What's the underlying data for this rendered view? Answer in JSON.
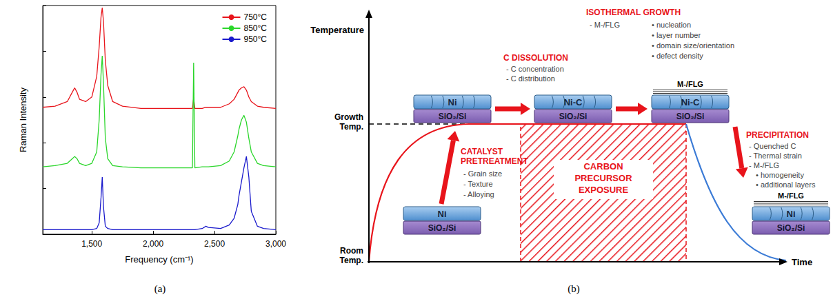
{
  "chart_data": {
    "type": "line",
    "xlabel": "Frequency (cm⁻¹)",
    "ylabel": "Raman Intensity",
    "x": [
      1100,
      1200,
      1300,
      1340,
      1360,
      1380,
      1400,
      1450,
      1500,
      1540,
      1560,
      1575,
      1585,
      1595,
      1610,
      1630,
      1670,
      1750,
      1900,
      2100,
      2300,
      2320,
      2330,
      2340,
      2400,
      2430,
      2450,
      2550,
      2620,
      2660,
      2690,
      2700,
      2720,
      2740,
      2760,
      2780,
      2800,
      2850,
      2900,
      3000
    ],
    "series": [
      {
        "name": "750°C",
        "color": "#e8141b",
        "values": [
          5.55,
          5.6,
          5.8,
          6.2,
          6.4,
          6.2,
          5.9,
          5.8,
          6.0,
          6.9,
          8.2,
          9.5,
          9.9,
          9.3,
          7.6,
          6.5,
          5.8,
          5.6,
          5.5,
          5.5,
          5.5,
          5.5,
          5.95,
          5.5,
          5.5,
          5.55,
          5.55,
          5.55,
          5.7,
          5.9,
          6.2,
          6.3,
          6.4,
          6.45,
          6.3,
          6.0,
          5.8,
          5.6,
          5.55,
          5.5
        ]
      },
      {
        "name": "850°C",
        "color": "#2bd62b",
        "values": [
          2.95,
          3.0,
          3.1,
          3.3,
          3.4,
          3.3,
          3.1,
          3.0,
          3.1,
          3.6,
          5.0,
          7.0,
          7.8,
          6.6,
          4.2,
          3.3,
          3.0,
          2.95,
          2.9,
          2.9,
          2.9,
          2.9,
          7.5,
          2.9,
          2.95,
          2.95,
          2.95,
          3.0,
          3.2,
          3.6,
          4.3,
          4.6,
          5.0,
          5.2,
          4.9,
          4.2,
          3.6,
          3.1,
          3.0,
          2.95
        ]
      },
      {
        "name": "950°C",
        "color": "#1a1acc",
        "values": [
          0.2,
          0.2,
          0.2,
          0.2,
          0.2,
          0.2,
          0.2,
          0.2,
          0.2,
          0.25,
          0.5,
          1.6,
          2.5,
          1.2,
          0.35,
          0.25,
          0.2,
          0.2,
          0.2,
          0.2,
          0.2,
          0.2,
          0.2,
          0.2,
          0.25,
          0.35,
          0.3,
          0.25,
          0.4,
          0.7,
          1.3,
          1.7,
          2.3,
          2.9,
          3.4,
          2.5,
          1.0,
          0.35,
          0.25,
          0.2
        ]
      }
    ],
    "xlim": [
      1100,
      3000
    ],
    "xticks": [
      1500,
      2000,
      2500,
      3000
    ],
    "ylim": [
      0,
      10
    ],
    "yticks": [
      0,
      2,
      4,
      6,
      8,
      10
    ],
    "tick_labels": "x",
    "grid": false,
    "legend": "upper right"
  },
  "diagram": {
    "axes": {
      "y_label": "Temperature",
      "x_label": "Time",
      "growth_temp": "Growth Temp.",
      "room_temp": "Room Temp."
    },
    "region": "CARBON PRECURSOR EXPOSURE",
    "stages": [
      {
        "title": "CATALYST PRETREATMENT",
        "items": [
          "- Grain size",
          "- Texture",
          "- Alloying"
        ],
        "bullets": []
      },
      {
        "title": "C DISSOLUTION",
        "items": [
          "- C concentration",
          "- C distribution"
        ],
        "bullets": []
      },
      {
        "title": "ISOTHERMAL GROWTH",
        "items": [
          "- M-/FLG"
        ],
        "bullets": [
          "• nucleation",
          "• layer number",
          "• domain size/orientation",
          "• defect density"
        ]
      },
      {
        "title": "PRECIPITATION",
        "items": [
          "- Quenched C",
          "- Thermal strain",
          "- M-/FLG"
        ],
        "bullets": [
          "• homogeneity",
          "• additional layers"
        ]
      }
    ],
    "stacks": [
      {
        "layers": [
          "Ni",
          "SiO₂/Si"
        ],
        "grains": false,
        "film": null
      },
      {
        "layers": [
          "Ni",
          "SiO₂/Si"
        ],
        "grains": true,
        "film": null
      },
      {
        "layers": [
          "Ni-C",
          "SiO₂/Si"
        ],
        "grains": true,
        "film": null
      },
      {
        "layers": [
          "Ni-C",
          "SiO₂/Si"
        ],
        "grains": true,
        "film": "M-/FLG"
      },
      {
        "layers": [
          "Ni",
          "SiO₂/Si"
        ],
        "grains": true,
        "film": "M-/FLG"
      }
    ]
  },
  "captions": [
    "(a)",
    "(b)"
  ]
}
